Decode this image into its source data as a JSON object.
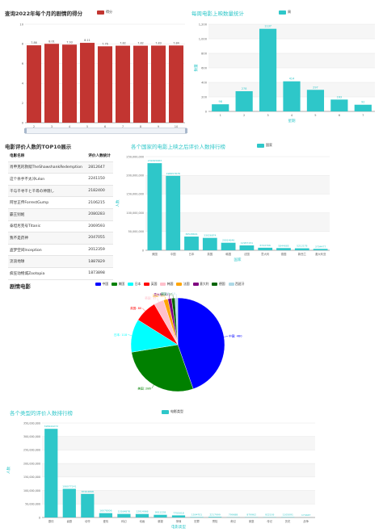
{
  "monthly_rating": {
    "title": "查询2022年每个月的剧情的得分",
    "legend": "得分",
    "color": "#C23531",
    "chart_data": {
      "type": "bar",
      "categories": [
        "2",
        "3",
        "4",
        "5",
        "6",
        "7",
        "8",
        "9",
        "10"
      ],
      "values": [
        7.86,
        8.01,
        7.93,
        8.11,
        7.76,
        7.82,
        7.82,
        7.83,
        7.84
      ],
      "ylim": [
        0,
        10
      ],
      "yticks": [
        "0",
        "2",
        "4",
        "6",
        "8",
        "10"
      ]
    }
  },
  "weekly_release": {
    "title": "每周电影上映数量统计",
    "legend": "周",
    "ylabel": "数量",
    "xlabel": "星期",
    "color": "#2EC7C9",
    "chart_data": {
      "type": "bar",
      "categories": [
        "1",
        "2",
        "3",
        "4",
        "5",
        "6",
        "7"
      ],
      "values": [
        98,
        278,
        1137,
        414,
        297,
        163,
        92
      ],
      "ylim": [
        0,
        1200
      ],
      "yticks": [
        "0",
        "200",
        "400",
        "600",
        "800",
        "1,000",
        "1,200"
      ]
    }
  },
  "top10_table": {
    "title": "电影评价人数的TOP10展示",
    "columns": [
      "电影名称",
      "评价人数统计"
    ],
    "rows": [
      [
        "肖申克的救赎TheShawshankRedemption",
        "2812647"
      ],
      [
        "这个杀手不太冷Léon",
        "2241150"
      ],
      [
        "千与千寻千と千尋の神隠し",
        "2182400"
      ],
      [
        "阿甘正传ForrestGump",
        "2106215"
      ],
      [
        "霸王别姬",
        "2080283"
      ],
      [
        "泰坦尼克号Titanic",
        "2069593"
      ],
      [
        "我不是药神",
        "2047055"
      ],
      [
        "盗梦空间Inception",
        "2012359"
      ],
      [
        "流浪地球",
        "1887829"
      ],
      [
        "疯狂动物城Zootopia",
        "1873898"
      ]
    ]
  },
  "country_rating": {
    "title": "各个国家的电影上映之后评价人数排行榜",
    "legend": "国家",
    "ylabel": "人数",
    "xlabel": "国家",
    "color": "#2EC7C9",
    "chart_data": {
      "type": "bar",
      "categories": [
        "美国",
        "中国",
        "日本",
        "英国",
        "韩国",
        "法国",
        "意大利",
        "德国",
        "新西兰",
        "澳大利亚"
      ],
      "values": [
        232495983,
        198657878,
        36528601,
        33026874,
        20014646,
        12957151,
        6722706,
        5844685,
        5212178,
        3704477
      ],
      "ylim": [
        0,
        250000000
      ],
      "yticks": [
        "0",
        "50,000,000",
        "100,000,000",
        "150,000,000",
        "200,000,000",
        "250,000,000"
      ]
    }
  },
  "genre_pie": {
    "title": "剧情电影",
    "chart_data": {
      "type": "pie",
      "slices": [
        {
          "name": "中国",
          "value": 460,
          "color": "#0000FF"
        },
        {
          "name": "美国",
          "value": 286,
          "color": "#008000"
        },
        {
          "name": "日本",
          "value": 118,
          "color": "#00FFFF"
        },
        {
          "name": "英国",
          "value": 80,
          "color": "#FF0000"
        },
        {
          "name": "韩国",
          "value": 35,
          "color": "#FFC0CB"
        },
        {
          "name": "法国",
          "value": 16,
          "color": "#FFA500"
        },
        {
          "name": "意大利",
          "value": 13,
          "color": "#800080"
        },
        {
          "name": "德国",
          "value": 12,
          "color": "#006400"
        },
        {
          "name": "西班牙",
          "value": 10,
          "color": "#ADD8E6"
        }
      ],
      "labels": [
        "中国: 460",
        "美国: 286",
        "日本: 118",
        "英国: 80",
        "韩国: 35",
        "法国: 16",
        "意大利: 13",
        "德国: 12",
        "西班牙: 10"
      ]
    }
  },
  "genre_rating": {
    "title": "各个类型的评价人数排行榜",
    "legend": "电影类型",
    "ylabel": "人数",
    "xlabel": "电影类型",
    "color": "#2EC7C9",
    "chart_data": {
      "type": "bar",
      "categories": [
        "剧情",
        "喜剧",
        "动作",
        "爱情",
        "科幻",
        "动画",
        "悬疑",
        "惊悚",
        "犯罪",
        "冒险",
        "奇幻",
        "家庭",
        "传记",
        "历史",
        "战争"
      ],
      "values": [
        328444272,
        106077141,
        87204898,
        16078006,
        13164878,
        12914966,
        9911228,
        7755018,
        1594701,
        2217999,
        799688,
        879962,
        922193,
        1105091,
        174447
      ],
      "ylim": [
        0,
        350000000
      ],
      "yticks": [
        "0",
        "50,000,000",
        "100,000,000",
        "150,000,000",
        "200,000,000",
        "250,000,000",
        "300,000,000",
        "350,000,000"
      ]
    }
  }
}
